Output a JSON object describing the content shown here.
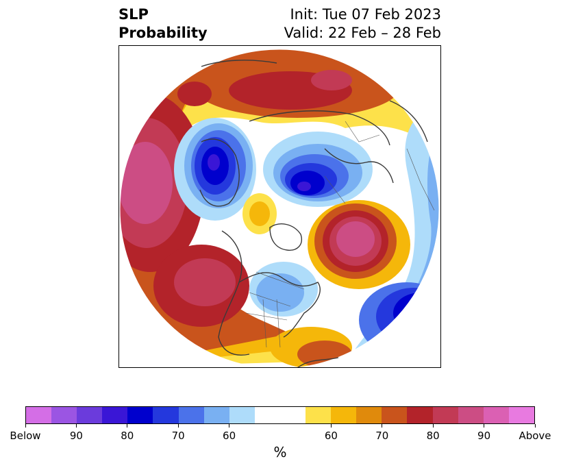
{
  "header": {
    "title_line1": "SLP",
    "title_line2": "Probability",
    "init_text": "Init: Tue 07 Feb 2023",
    "valid_text": "Valid: 22 Feb – 28 Feb"
  },
  "colorbar": {
    "colors": [
      "#d46ee6",
      "#9b55e3",
      "#6b3bdc",
      "#3a16d6",
      "#0000cd",
      "#2438dd",
      "#4b72ea",
      "#79b0f2",
      "#aedcfa",
      "#ffffff",
      "#ffffff",
      "#fde14a",
      "#f5b70a",
      "#e08a0c",
      "#c9541c",
      "#b3232a",
      "#c23a55",
      "#cc4d84",
      "#db60b3",
      "#e87ae0"
    ],
    "tick_labels": [
      "Below",
      "90",
      "80",
      "70",
      "60",
      "60",
      "70",
      "80",
      "90",
      "Above"
    ],
    "unit_label": "%"
  }
}
